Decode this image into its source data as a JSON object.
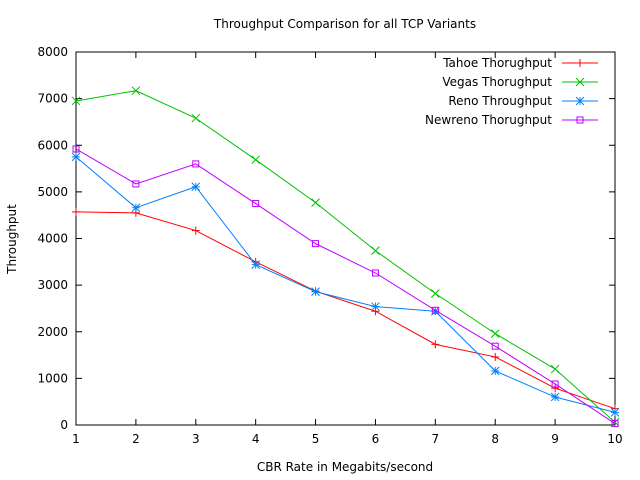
{
  "chart_data": {
    "type": "line",
    "title": "Throughput Comparison for all TCP Variants",
    "xlabel": "CBR Rate in Megabits/second",
    "ylabel": "Throughput",
    "xlim": [
      1,
      10
    ],
    "ylim": [
      0,
      8000
    ],
    "xticks": [
      1,
      2,
      3,
      4,
      5,
      6,
      7,
      8,
      9,
      10
    ],
    "yticks": [
      0,
      1000,
      2000,
      3000,
      4000,
      5000,
      6000,
      7000,
      8000
    ],
    "grid": false,
    "legend_position": "top-right",
    "x": [
      1,
      2,
      3,
      4,
      5,
      6,
      7,
      8,
      9,
      10
    ],
    "series": [
      {
        "name": "Tahoe Thorughput",
        "color": "#ff0000",
        "marker": "plus",
        "values": [
          4570,
          4550,
          4170,
          3500,
          2870,
          2440,
          1730,
          1460,
          790,
          350
        ]
      },
      {
        "name": "Vegas Thorughput",
        "color": "#00c000",
        "marker": "cross",
        "values": [
          6950,
          7170,
          6580,
          5690,
          4770,
          3740,
          2820,
          1960,
          1200,
          60
        ]
      },
      {
        "name": "Reno Throughput",
        "color": "#0080ff",
        "marker": "star",
        "values": [
          5750,
          4660,
          5110,
          3440,
          2860,
          2540,
          2440,
          1160,
          600,
          270
        ]
      },
      {
        "name": "Newreno Thorughput",
        "color": "#c000ff",
        "marker": "square",
        "values": [
          5920,
          5170,
          5600,
          4750,
          3890,
          3260,
          2460,
          1690,
          880,
          30
        ]
      }
    ]
  }
}
